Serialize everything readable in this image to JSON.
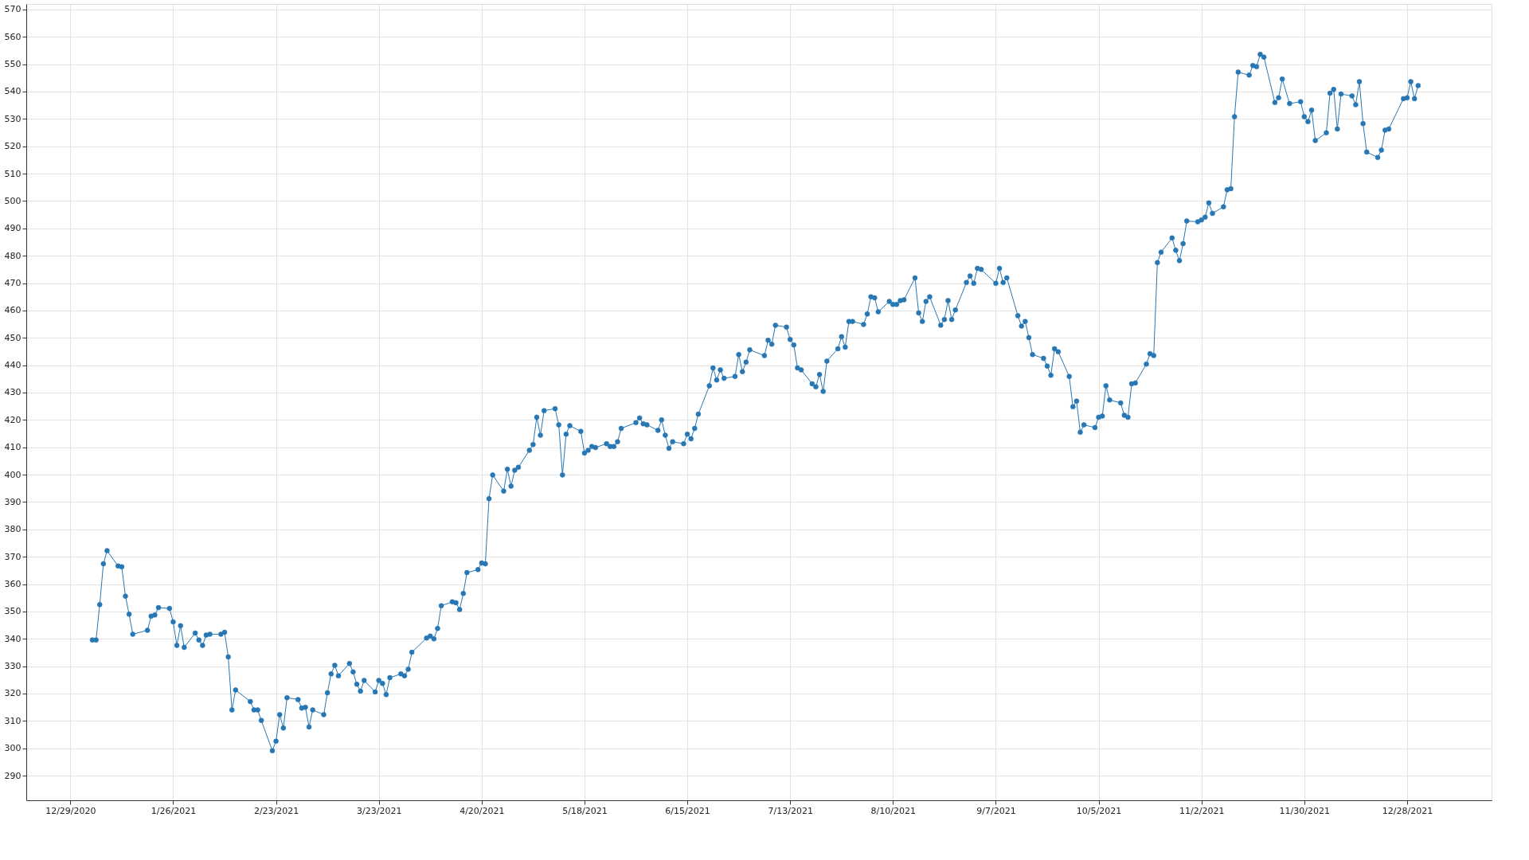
{
  "chart_data": {
    "type": "line",
    "marker": "circle",
    "line_style": "solid",
    "grid": true,
    "xlim": [
      "2020-12-17",
      "2022-01-20"
    ],
    "ylim": [
      281,
      572
    ],
    "xticks": [
      {
        "value": "2020-12-29",
        "label": "12/29/2020"
      },
      {
        "value": "2021-01-26",
        "label": "1/26/2021"
      },
      {
        "value": "2021-02-23",
        "label": "2/23/2021"
      },
      {
        "value": "2021-03-23",
        "label": "3/23/2021"
      },
      {
        "value": "2021-04-20",
        "label": "4/20/2021"
      },
      {
        "value": "2021-05-18",
        "label": "5/18/2021"
      },
      {
        "value": "2021-06-15",
        "label": "6/15/2021"
      },
      {
        "value": "2021-07-13",
        "label": "7/13/2021"
      },
      {
        "value": "2021-08-10",
        "label": "8/10/2021"
      },
      {
        "value": "2021-09-07",
        "label": "9/7/2021"
      },
      {
        "value": "2021-10-05",
        "label": "10/5/2021"
      },
      {
        "value": "2021-11-02",
        "label": "11/2/2021"
      },
      {
        "value": "2021-11-30",
        "label": "11/30/2021"
      },
      {
        "value": "2021-12-28",
        "label": "12/28/2021"
      }
    ],
    "yticks": [
      290,
      300,
      310,
      320,
      330,
      340,
      350,
      360,
      370,
      380,
      390,
      400,
      410,
      420,
      430,
      440,
      450,
      460,
      470,
      480,
      490,
      500,
      510,
      520,
      530,
      540,
      550,
      560,
      570
    ],
    "x": [
      "2021-01-04",
      "2021-01-05",
      "2021-01-06",
      "2021-01-07",
      "2021-01-08",
      "2021-01-11",
      "2021-01-12",
      "2021-01-13",
      "2021-01-14",
      "2021-01-15",
      "2021-01-19",
      "2021-01-20",
      "2021-01-21",
      "2021-01-22",
      "2021-01-25",
      "2021-01-26",
      "2021-01-27",
      "2021-01-28",
      "2021-01-29",
      "2021-02-01",
      "2021-02-02",
      "2021-02-03",
      "2021-02-04",
      "2021-02-05",
      "2021-02-08",
      "2021-02-09",
      "2021-02-10",
      "2021-02-11",
      "2021-02-12",
      "2021-02-16",
      "2021-02-17",
      "2021-02-18",
      "2021-02-19",
      "2021-02-22",
      "2021-02-23",
      "2021-02-24",
      "2021-02-25",
      "2021-02-26",
      "2021-03-01",
      "2021-03-02",
      "2021-03-03",
      "2021-03-04",
      "2021-03-05",
      "2021-03-08",
      "2021-03-09",
      "2021-03-10",
      "2021-03-11",
      "2021-03-12",
      "2021-03-15",
      "2021-03-16",
      "2021-03-17",
      "2021-03-18",
      "2021-03-19",
      "2021-03-22",
      "2021-03-23",
      "2021-03-24",
      "2021-03-25",
      "2021-03-26",
      "2021-03-29",
      "2021-03-30",
      "2021-03-31",
      "2021-04-01",
      "2021-04-05",
      "2021-04-06",
      "2021-04-07",
      "2021-04-08",
      "2021-04-09",
      "2021-04-12",
      "2021-04-13",
      "2021-04-14",
      "2021-04-15",
      "2021-04-16",
      "2021-04-19",
      "2021-04-20",
      "2021-04-21",
      "2021-04-22",
      "2021-04-23",
      "2021-04-26",
      "2021-04-27",
      "2021-04-28",
      "2021-04-29",
      "2021-04-30",
      "2021-05-03",
      "2021-05-04",
      "2021-05-05",
      "2021-05-06",
      "2021-05-07",
      "2021-05-10",
      "2021-05-11",
      "2021-05-12",
      "2021-05-13",
      "2021-05-14",
      "2021-05-17",
      "2021-05-18",
      "2021-05-19",
      "2021-05-20",
      "2021-05-21",
      "2021-05-24",
      "2021-05-25",
      "2021-05-26",
      "2021-05-27",
      "2021-05-28",
      "2021-06-01",
      "2021-06-02",
      "2021-06-03",
      "2021-06-04",
      "2021-06-07",
      "2021-06-08",
      "2021-06-09",
      "2021-06-10",
      "2021-06-11",
      "2021-06-14",
      "2021-06-15",
      "2021-06-16",
      "2021-06-17",
      "2021-06-18",
      "2021-06-21",
      "2021-06-22",
      "2021-06-23",
      "2021-06-24",
      "2021-06-25",
      "2021-06-28",
      "2021-06-29",
      "2021-06-30",
      "2021-07-01",
      "2021-07-02",
      "2021-07-06",
      "2021-07-07",
      "2021-07-08",
      "2021-07-09",
      "2021-07-12",
      "2021-07-13",
      "2021-07-14",
      "2021-07-15",
      "2021-07-16",
      "2021-07-19",
      "2021-07-20",
      "2021-07-21",
      "2021-07-22",
      "2021-07-23",
      "2021-07-26",
      "2021-07-27",
      "2021-07-28",
      "2021-07-29",
      "2021-07-30",
      "2021-08-02",
      "2021-08-03",
      "2021-08-04",
      "2021-08-05",
      "2021-08-06",
      "2021-08-09",
      "2021-08-10",
      "2021-08-11",
      "2021-08-12",
      "2021-08-13",
      "2021-08-16",
      "2021-08-17",
      "2021-08-18",
      "2021-08-19",
      "2021-08-20",
      "2021-08-23",
      "2021-08-24",
      "2021-08-25",
      "2021-08-26",
      "2021-08-27",
      "2021-08-30",
      "2021-08-31",
      "2021-09-01",
      "2021-09-02",
      "2021-09-03",
      "2021-09-07",
      "2021-09-08",
      "2021-09-09",
      "2021-09-10",
      "2021-09-13",
      "2021-09-14",
      "2021-09-15",
      "2021-09-16",
      "2021-09-17",
      "2021-09-20",
      "2021-09-21",
      "2021-09-22",
      "2021-09-23",
      "2021-09-24",
      "2021-09-27",
      "2021-09-28",
      "2021-09-29",
      "2021-09-30",
      "2021-10-01",
      "2021-10-04",
      "2021-10-05",
      "2021-10-06",
      "2021-10-07",
      "2021-10-08",
      "2021-10-11",
      "2021-10-12",
      "2021-10-13",
      "2021-10-14",
      "2021-10-15",
      "2021-10-18",
      "2021-10-19",
      "2021-10-20",
      "2021-10-21",
      "2021-10-22",
      "2021-10-25",
      "2021-10-26",
      "2021-10-27",
      "2021-10-28",
      "2021-10-29",
      "2021-11-01",
      "2021-11-02",
      "2021-11-03",
      "2021-11-04",
      "2021-11-05",
      "2021-11-08",
      "2021-11-09",
      "2021-11-10",
      "2021-11-11",
      "2021-11-12",
      "2021-11-15",
      "2021-11-16",
      "2021-11-17",
      "2021-11-18",
      "2021-11-19",
      "2021-11-22",
      "2021-11-23",
      "2021-11-24",
      "2021-11-26",
      "2021-11-29",
      "2021-11-30",
      "2021-12-01",
      "2021-12-02",
      "2021-12-03",
      "2021-12-06",
      "2021-12-07",
      "2021-12-08",
      "2021-12-09",
      "2021-12-10",
      "2021-12-13",
      "2021-12-14",
      "2021-12-15",
      "2021-12-16",
      "2021-12-17",
      "2021-12-20",
      "2021-12-21",
      "2021-12-22",
      "2021-12-23",
      "2021-12-27",
      "2021-12-28",
      "2021-12-29",
      "2021-12-30",
      "2021-12-31"
    ],
    "series": [
      {
        "color": "#2777b4",
        "values": [
          339.6,
          339.6,
          352.5,
          367.4,
          372.2,
          366.6,
          366.3,
          355.6,
          349.0,
          341.7,
          343.1,
          348.3,
          348.7,
          351.4,
          351.1,
          346.2,
          337.6,
          344.8,
          336.9,
          342.1,
          339.6,
          337.6,
          341.4,
          341.7,
          341.7,
          342.4,
          333.4,
          314.0,
          321.3,
          317.1,
          314.0,
          314.0,
          310.2,
          299.1,
          302.6,
          312.3,
          307.4,
          318.5,
          317.8,
          314.7,
          315.0,
          307.8,
          314.0,
          312.3,
          320.3,
          327.2,
          330.3,
          326.5,
          331.0,
          327.9,
          323.4,
          320.9,
          324.8,
          320.6,
          324.8,
          323.7,
          319.6,
          325.8,
          327.2,
          326.5,
          328.9,
          335.1,
          340.3,
          341.0,
          340.0,
          343.8,
          352.1,
          353.5,
          353.2,
          350.7,
          356.6,
          364.2,
          365.3,
          367.7,
          367.4,
          391.2,
          399.9,
          394.0,
          402.0,
          395.8,
          401.6,
          402.7,
          408.9,
          411.0,
          421.0,
          414.4,
          423.4,
          424.1,
          418.2,
          399.9,
          414.8,
          417.9,
          415.8,
          407.9,
          408.9,
          410.3,
          409.9,
          411.3,
          410.3,
          410.3,
          412.0,
          416.9,
          419.0,
          420.7,
          418.6,
          418.2,
          416.2,
          420.0,
          414.4,
          409.6,
          412.0,
          411.3,
          414.8,
          413.1,
          416.9,
          422.1,
          432.5,
          439.0,
          434.6,
          438.3,
          435.2,
          435.9,
          443.9,
          437.6,
          441.1,
          445.6,
          443.5,
          449.1,
          447.7,
          454.6,
          453.9,
          449.4,
          447.4,
          439.0,
          438.3,
          433.2,
          432.1,
          436.6,
          430.4,
          441.5,
          446.0,
          450.4,
          446.6,
          456.0,
          456.0,
          454.9,
          458.7,
          465.0,
          464.6,
          459.5,
          463.3,
          462.2,
          462.2,
          463.6,
          463.9,
          471.9,
          459.1,
          456.0,
          463.3,
          465.0,
          454.6,
          456.7,
          463.6,
          456.7,
          460.2,
          470.2,
          472.6,
          469.9,
          475.4,
          475.0,
          469.9,
          475.4,
          470.2,
          471.9,
          458.1,
          454.3,
          456.0,
          450.1,
          443.9,
          442.5,
          439.7,
          436.3,
          446.0,
          444.9,
          435.9,
          424.8,
          426.9,
          415.5,
          418.2,
          417.2,
          421.0,
          421.4,
          432.5,
          427.3,
          426.2,
          421.7,
          421.0,
          433.2,
          433.5,
          440.4,
          444.2,
          443.5,
          477.5,
          481.3,
          486.5,
          482.0,
          478.2,
          484.4,
          492.7,
          492.4,
          493.1,
          494.1,
          499.3,
          495.5,
          497.9,
          504.1,
          504.5,
          530.8,
          547.1,
          546.0,
          549.5,
          549.1,
          553.6,
          552.6,
          536.0,
          537.7,
          544.6,
          535.6,
          536.3,
          530.8,
          529.0,
          533.2,
          522.1,
          524.9,
          539.4,
          540.8,
          526.3,
          539.1,
          538.4,
          535.2,
          543.6,
          528.3,
          517.9,
          515.9,
          518.6,
          525.9,
          526.3,
          537.4,
          537.7,
          543.6,
          537.4,
          542.2
        ]
      }
    ]
  }
}
